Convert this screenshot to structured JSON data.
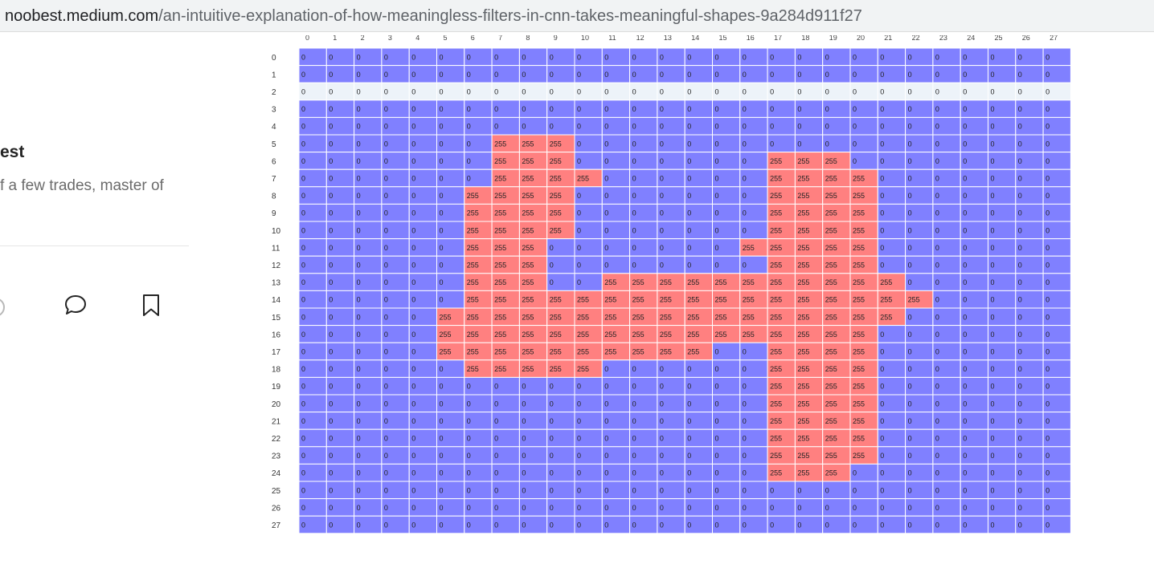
{
  "browser": {
    "url_host": "noobest.medium.com",
    "url_path": "/an-intuitive-explanation-of-how-meaningless-filters-in-cnn-takes-meaningful-shapes-9a284d911f27"
  },
  "sidebar": {
    "author_name": "est",
    "author_bio": "f a few trades, master of"
  },
  "icons": {
    "clap": "clap-icon",
    "comment": "comment-icon",
    "bookmark": "bookmark-icon"
  },
  "colors": {
    "zero_cell": "#8080ff",
    "value_cell": "#ff8080",
    "highlight_row": "#edf3f9",
    "cell_border": "#ffffff"
  },
  "chart_data": {
    "type": "heatmap",
    "rows": [
      "0",
      "1",
      "2",
      "3",
      "4",
      "5",
      "6",
      "7",
      "8",
      "9",
      "10",
      "11",
      "12",
      "13",
      "14",
      "15",
      "16",
      "17",
      "18",
      "19",
      "20",
      "21",
      "22",
      "23",
      "24",
      "25",
      "26",
      "27"
    ],
    "columns": [
      "0",
      "1",
      "2",
      "3",
      "4",
      "5",
      "6",
      "7",
      "8",
      "9",
      "10",
      "11",
      "12",
      "13",
      "14",
      "15",
      "16",
      "17",
      "18",
      "19",
      "20",
      "21",
      "22",
      "23",
      "24",
      "25",
      "26",
      "27"
    ],
    "highlighted_row": 2,
    "values": [
      [
        0,
        0,
        0,
        0,
        0,
        0,
        0,
        0,
        0,
        0,
        0,
        0,
        0,
        0,
        0,
        0,
        0,
        0,
        0,
        0,
        0,
        0,
        0,
        0,
        0,
        0,
        0,
        0
      ],
      [
        0,
        0,
        0,
        0,
        0,
        0,
        0,
        0,
        0,
        0,
        0,
        0,
        0,
        0,
        0,
        0,
        0,
        0,
        0,
        0,
        0,
        0,
        0,
        0,
        0,
        0,
        0,
        0
      ],
      [
        0,
        0,
        0,
        0,
        0,
        0,
        0,
        0,
        0,
        0,
        0,
        0,
        0,
        0,
        0,
        0,
        0,
        0,
        0,
        0,
        0,
        0,
        0,
        0,
        0,
        0,
        0,
        0
      ],
      [
        0,
        0,
        0,
        0,
        0,
        0,
        0,
        0,
        0,
        0,
        0,
        0,
        0,
        0,
        0,
        0,
        0,
        0,
        0,
        0,
        0,
        0,
        0,
        0,
        0,
        0,
        0,
        0
      ],
      [
        0,
        0,
        0,
        0,
        0,
        0,
        0,
        0,
        0,
        0,
        0,
        0,
        0,
        0,
        0,
        0,
        0,
        0,
        0,
        0,
        0,
        0,
        0,
        0,
        0,
        0,
        0,
        0
      ],
      [
        0,
        0,
        0,
        0,
        0,
        0,
        0,
        255,
        255,
        255,
        0,
        0,
        0,
        0,
        0,
        0,
        0,
        0,
        0,
        0,
        0,
        0,
        0,
        0,
        0,
        0,
        0,
        0
      ],
      [
        0,
        0,
        0,
        0,
        0,
        0,
        0,
        255,
        255,
        255,
        0,
        0,
        0,
        0,
        0,
        0,
        0,
        255,
        255,
        255,
        0,
        0,
        0,
        0,
        0,
        0,
        0,
        0
      ],
      [
        0,
        0,
        0,
        0,
        0,
        0,
        0,
        255,
        255,
        255,
        255,
        0,
        0,
        0,
        0,
        0,
        0,
        255,
        255,
        255,
        255,
        0,
        0,
        0,
        0,
        0,
        0,
        0
      ],
      [
        0,
        0,
        0,
        0,
        0,
        0,
        255,
        255,
        255,
        255,
        0,
        0,
        0,
        0,
        0,
        0,
        0,
        255,
        255,
        255,
        255,
        0,
        0,
        0,
        0,
        0,
        0,
        0
      ],
      [
        0,
        0,
        0,
        0,
        0,
        0,
        255,
        255,
        255,
        255,
        0,
        0,
        0,
        0,
        0,
        0,
        0,
        255,
        255,
        255,
        255,
        0,
        0,
        0,
        0,
        0,
        0,
        0
      ],
      [
        0,
        0,
        0,
        0,
        0,
        0,
        255,
        255,
        255,
        255,
        0,
        0,
        0,
        0,
        0,
        0,
        0,
        255,
        255,
        255,
        255,
        0,
        0,
        0,
        0,
        0,
        0,
        0
      ],
      [
        0,
        0,
        0,
        0,
        0,
        0,
        255,
        255,
        255,
        0,
        0,
        0,
        0,
        0,
        0,
        0,
        255,
        255,
        255,
        255,
        255,
        0,
        0,
        0,
        0,
        0,
        0,
        0
      ],
      [
        0,
        0,
        0,
        0,
        0,
        0,
        255,
        255,
        255,
        0,
        0,
        0,
        0,
        0,
        0,
        0,
        0,
        255,
        255,
        255,
        255,
        0,
        0,
        0,
        0,
        0,
        0,
        0
      ],
      [
        0,
        0,
        0,
        0,
        0,
        0,
        255,
        255,
        255,
        0,
        0,
        255,
        255,
        255,
        255,
        255,
        255,
        255,
        255,
        255,
        255,
        255,
        0,
        0,
        0,
        0,
        0,
        0
      ],
      [
        0,
        0,
        0,
        0,
        0,
        0,
        255,
        255,
        255,
        255,
        255,
        255,
        255,
        255,
        255,
        255,
        255,
        255,
        255,
        255,
        255,
        255,
        255,
        0,
        0,
        0,
        0,
        0
      ],
      [
        0,
        0,
        0,
        0,
        0,
        255,
        255,
        255,
        255,
        255,
        255,
        255,
        255,
        255,
        255,
        255,
        255,
        255,
        255,
        255,
        255,
        255,
        0,
        0,
        0,
        0,
        0,
        0
      ],
      [
        0,
        0,
        0,
        0,
        0,
        255,
        255,
        255,
        255,
        255,
        255,
        255,
        255,
        255,
        255,
        255,
        255,
        255,
        255,
        255,
        255,
        0,
        0,
        0,
        0,
        0,
        0,
        0
      ],
      [
        0,
        0,
        0,
        0,
        0,
        255,
        255,
        255,
        255,
        255,
        255,
        255,
        255,
        255,
        255,
        0,
        0,
        255,
        255,
        255,
        255,
        0,
        0,
        0,
        0,
        0,
        0,
        0
      ],
      [
        0,
        0,
        0,
        0,
        0,
        0,
        255,
        255,
        255,
        255,
        255,
        0,
        0,
        0,
        0,
        0,
        0,
        255,
        255,
        255,
        255,
        0,
        0,
        0,
        0,
        0,
        0,
        0
      ],
      [
        0,
        0,
        0,
        0,
        0,
        0,
        0,
        0,
        0,
        0,
        0,
        0,
        0,
        0,
        0,
        0,
        0,
        255,
        255,
        255,
        255,
        0,
        0,
        0,
        0,
        0,
        0,
        0
      ],
      [
        0,
        0,
        0,
        0,
        0,
        0,
        0,
        0,
        0,
        0,
        0,
        0,
        0,
        0,
        0,
        0,
        0,
        255,
        255,
        255,
        255,
        0,
        0,
        0,
        0,
        0,
        0,
        0
      ],
      [
        0,
        0,
        0,
        0,
        0,
        0,
        0,
        0,
        0,
        0,
        0,
        0,
        0,
        0,
        0,
        0,
        0,
        255,
        255,
        255,
        255,
        0,
        0,
        0,
        0,
        0,
        0,
        0
      ],
      [
        0,
        0,
        0,
        0,
        0,
        0,
        0,
        0,
        0,
        0,
        0,
        0,
        0,
        0,
        0,
        0,
        0,
        255,
        255,
        255,
        255,
        0,
        0,
        0,
        0,
        0,
        0,
        0
      ],
      [
        0,
        0,
        0,
        0,
        0,
        0,
        0,
        0,
        0,
        0,
        0,
        0,
        0,
        0,
        0,
        0,
        0,
        255,
        255,
        255,
        255,
        0,
        0,
        0,
        0,
        0,
        0,
        0
      ],
      [
        0,
        0,
        0,
        0,
        0,
        0,
        0,
        0,
        0,
        0,
        0,
        0,
        0,
        0,
        0,
        0,
        0,
        255,
        255,
        255,
        0,
        0,
        0,
        0,
        0,
        0,
        0,
        0
      ],
      [
        0,
        0,
        0,
        0,
        0,
        0,
        0,
        0,
        0,
        0,
        0,
        0,
        0,
        0,
        0,
        0,
        0,
        0,
        0,
        0,
        0,
        0,
        0,
        0,
        0,
        0,
        0,
        0
      ],
      [
        0,
        0,
        0,
        0,
        0,
        0,
        0,
        0,
        0,
        0,
        0,
        0,
        0,
        0,
        0,
        0,
        0,
        0,
        0,
        0,
        0,
        0,
        0,
        0,
        0,
        0,
        0,
        0
      ],
      [
        0,
        0,
        0,
        0,
        0,
        0,
        0,
        0,
        0,
        0,
        0,
        0,
        0,
        0,
        0,
        0,
        0,
        0,
        0,
        0,
        0,
        0,
        0,
        0,
        0,
        0,
        0,
        0
      ]
    ]
  }
}
